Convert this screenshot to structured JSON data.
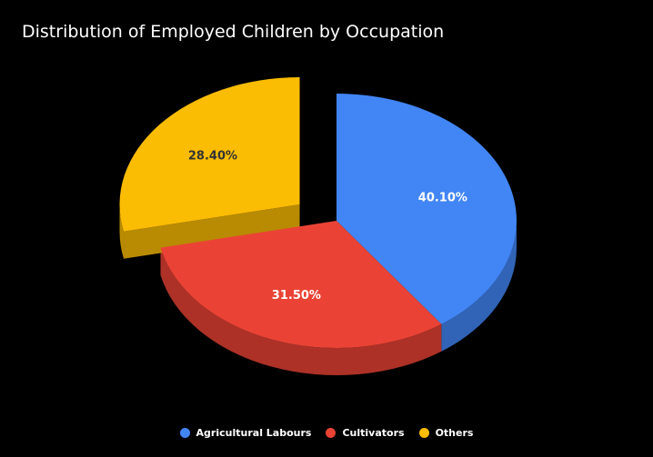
{
  "chart_data": {
    "type": "pie",
    "title": "Distribution of Employed Children by Occupation",
    "slices": [
      {
        "name": "Agricultural Labours",
        "value": 40.1,
        "label": "40.10%",
        "color": "#4285f4",
        "side_color": "#3164b7",
        "label_color": "#ffffff"
      },
      {
        "name": "Cultivators",
        "value": 31.5,
        "label": "31.50%",
        "color": "#ea4335",
        "side_color": "#ad3127",
        "label_color": "#ffffff"
      },
      {
        "name": "Others",
        "value": 28.4,
        "label": "28.40%",
        "color": "#fbbc04",
        "side_color": "#b98b03",
        "label_color": "#333333",
        "exploded": true
      }
    ],
    "legend_position": "bottom",
    "three_d": true
  }
}
